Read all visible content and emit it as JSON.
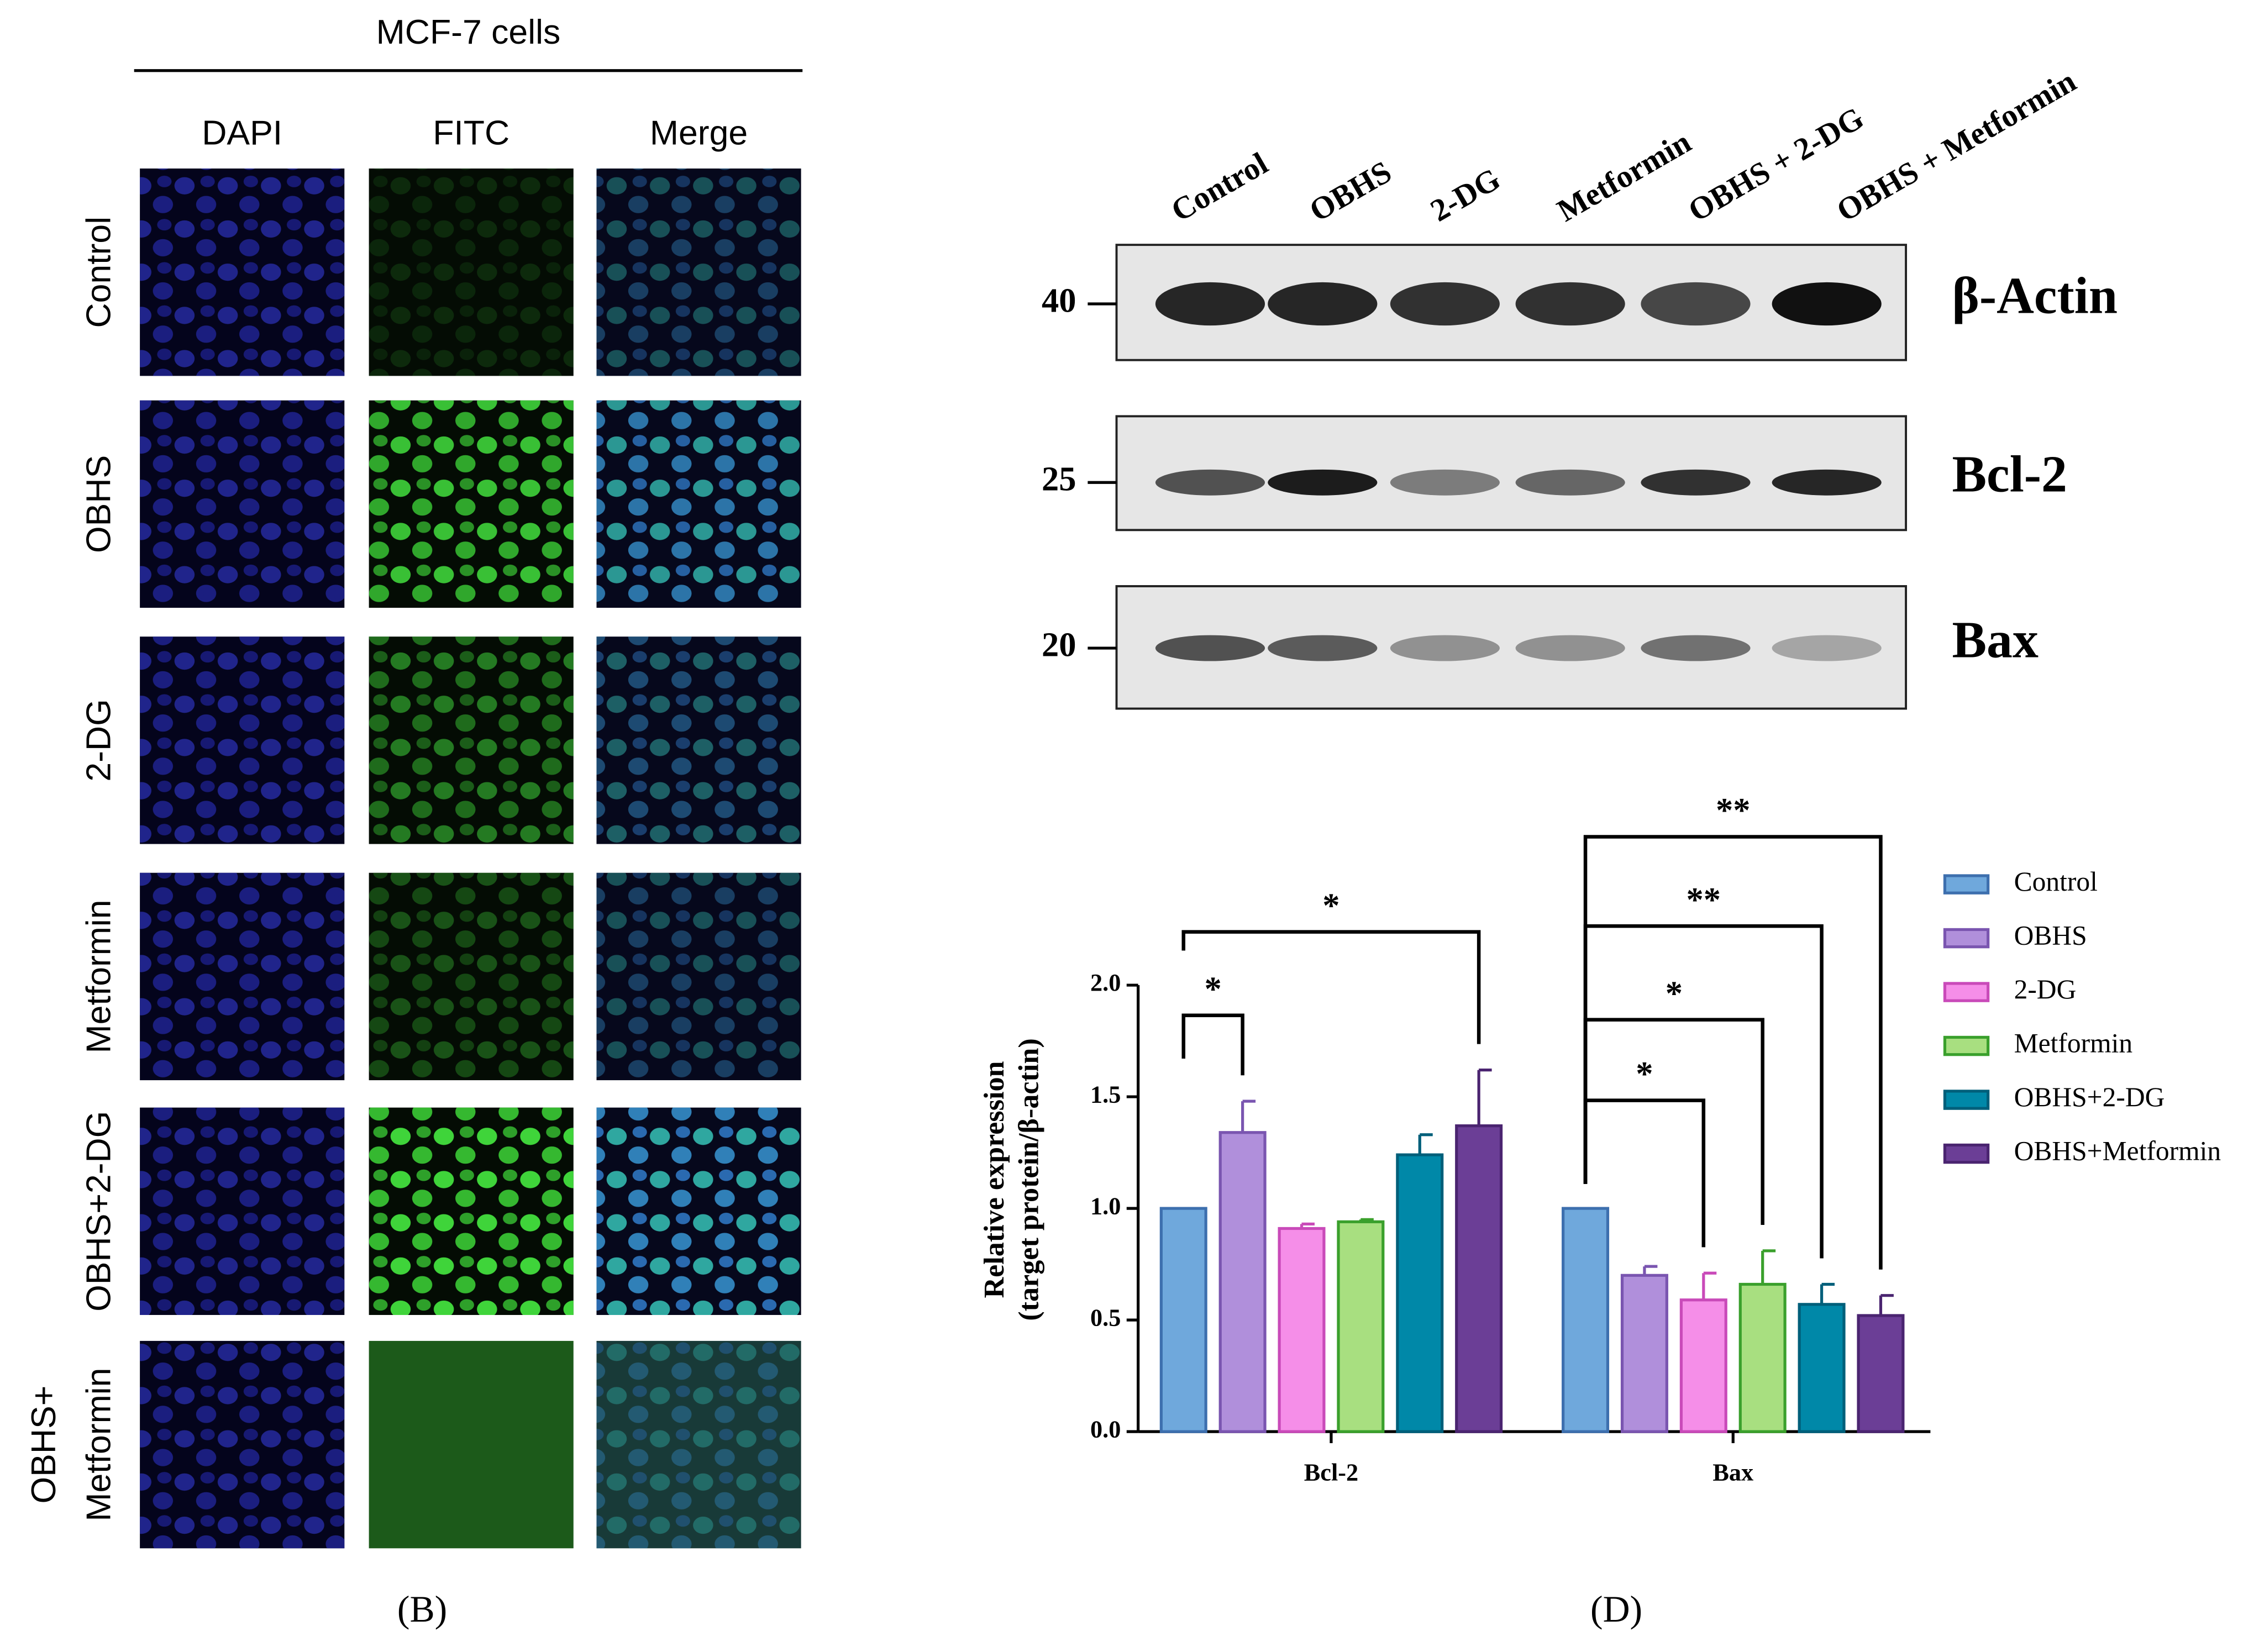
{
  "panel_b": {
    "label": "(B)",
    "title": "MCF-7 cells",
    "columns": [
      "DAPI",
      "FITC",
      "Merge"
    ],
    "rows": [
      [
        "Control"
      ],
      [
        "OBHS"
      ],
      [
        "2-DG"
      ],
      [
        "Metformin"
      ],
      [
        "OBHS+2-DG"
      ],
      [
        "OBHS+",
        "Metformin"
      ]
    ]
  },
  "panel_d": {
    "label": "(D)",
    "western_blot": {
      "lanes": [
        "Control",
        "OBHS",
        "2-DG",
        "Metformin",
        "OBHS + 2-DG",
        "OBHS + Metformin"
      ],
      "blots": [
        {
          "protein": "β-Actin",
          "marker": 40
        },
        {
          "protein": "Bcl-2",
          "marker": 25
        },
        {
          "protein": "Bax",
          "marker": 20
        }
      ]
    }
  },
  "chart_data": {
    "type": "bar",
    "ylabel": [
      "Relative expression",
      "(target protein/β-actin)"
    ],
    "categories": [
      "Bcl-2",
      "Bax"
    ],
    "series": [
      {
        "name": "Control",
        "color": "#6fa8dc",
        "edge": "#3d6fae",
        "values": [
          1.0,
          1.0
        ],
        "errors": [
          0,
          0
        ]
      },
      {
        "name": "OBHS",
        "color": "#b08fdb",
        "edge": "#7a55b0",
        "values": [
          1.34,
          0.7
        ],
        "errors": [
          0.14,
          0.04
        ]
      },
      {
        "name": "2-DG",
        "color": "#f58ee8",
        "edge": "#c94ab9",
        "values": [
          0.91,
          0.59
        ],
        "errors": [
          0.02,
          0.12
        ]
      },
      {
        "name": "Metformin",
        "color": "#a8df80",
        "edge": "#3aa02c",
        "values": [
          0.94,
          0.66
        ],
        "errors": [
          0.01,
          0.15
        ]
      },
      {
        "name": "OBHS+2-DG",
        "color": "#0088a8",
        "edge": "#005f7a",
        "values": [
          1.24,
          0.57
        ],
        "errors": [
          0.09,
          0.09
        ]
      },
      {
        "name": "OBHS+Metformin",
        "color": "#6b3e96",
        "edge": "#4a2470",
        "values": [
          1.37,
          0.52
        ],
        "errors": [
          0.25,
          0.09
        ]
      }
    ],
    "ylim": [
      0,
      2.0
    ],
    "yticks": [
      {
        "value": 0,
        "label": "0.0"
      },
      {
        "value": 0.5,
        "label": "0.5"
      },
      {
        "value": 1.0,
        "label": "1.0"
      },
      {
        "value": 1.5,
        "label": "1.5"
      },
      {
        "value": 2.0,
        "label": "2.0"
      }
    ],
    "legend": "right",
    "annotations": [
      {
        "text": "*",
        "category": 0,
        "between": [
          0,
          1
        ]
      },
      {
        "text": "*",
        "category": 0,
        "between": [
          0,
          5
        ]
      },
      {
        "text": "*",
        "category": 1,
        "between": [
          0,
          2
        ]
      },
      {
        "text": "*",
        "category": 1,
        "between": [
          0,
          3
        ]
      },
      {
        "text": "**",
        "category": 1,
        "between": [
          0,
          4
        ]
      },
      {
        "text": "**",
        "category": 1,
        "between": [
          0,
          5
        ]
      }
    ]
  }
}
